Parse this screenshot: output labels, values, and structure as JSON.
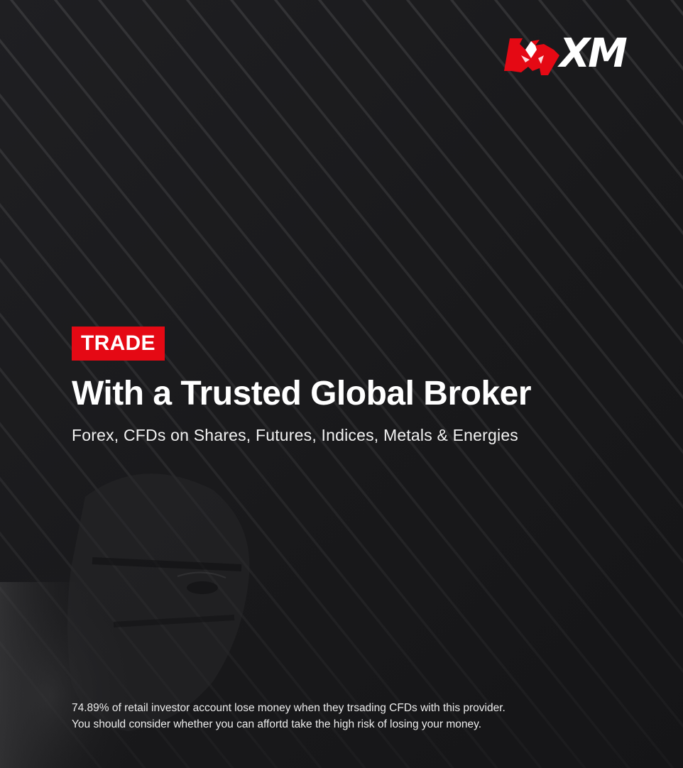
{
  "brand": {
    "name": "XM",
    "accent_color": "#e50914",
    "logo_icon": "bull-head-icon"
  },
  "hero": {
    "badge": "TRADE",
    "headline": "With a Trusted Global Broker",
    "subheadline": "Forex, CFDs on Shares, Futures, Indices, Metals & Energies"
  },
  "disclaimer": {
    "line1": "74.89% of retail investor account lose money when they trsading CFDs with this provider.",
    "line2": "You should consider whether you can affortd take the high risk of losing your money."
  },
  "colors": {
    "background": "#1b1b1d",
    "stripe": "#ffffff",
    "text": "#ffffff"
  }
}
